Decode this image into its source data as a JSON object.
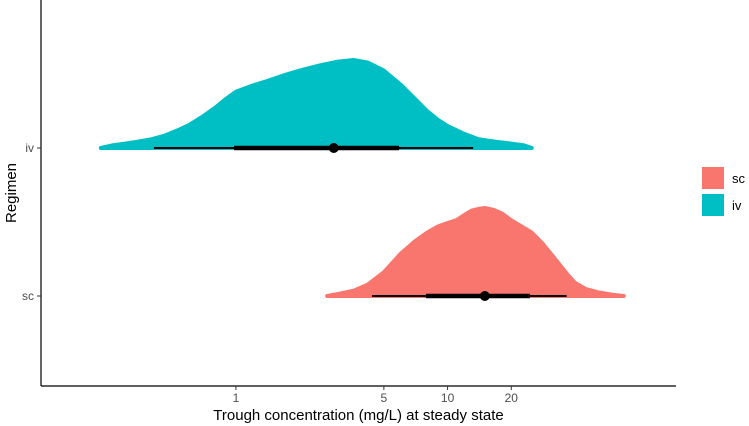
{
  "chart_data": {
    "type": "halfeye",
    "title": "",
    "xlabel": "Trough concentration (mg/L) at steady state",
    "ylabel": "Regimen",
    "x_scale": "log10",
    "xlim": [
      0.12,
      120
    ],
    "x_ticks": [
      {
        "value": 1,
        "label": "1"
      },
      {
        "value": 5,
        "label": "5"
      },
      {
        "value": 10,
        "label": "10"
      },
      {
        "value": 20,
        "label": "20"
      }
    ],
    "categories": [
      "iv",
      "sc"
    ],
    "grid": false,
    "legend": {
      "position": "right",
      "entries": [
        "sc",
        "iv"
      ]
    },
    "series": [
      {
        "name": "iv",
        "color": "#00BFC4",
        "median": 2.9,
        "interval_66": [
          0.98,
          5.9
        ],
        "interval_95": [
          0.41,
          13.2
        ],
        "density": [
          [
            0.23,
            0.0
          ],
          [
            0.26,
            0.03
          ],
          [
            0.3,
            0.05
          ],
          [
            0.34,
            0.07
          ],
          [
            0.4,
            0.1
          ],
          [
            0.46,
            0.14
          ],
          [
            0.53,
            0.2
          ],
          [
            0.6,
            0.26
          ],
          [
            0.7,
            0.36
          ],
          [
            0.8,
            0.46
          ],
          [
            0.9,
            0.56
          ],
          [
            1.0,
            0.64
          ],
          [
            1.2,
            0.71
          ],
          [
            1.4,
            0.76
          ],
          [
            1.7,
            0.83
          ],
          [
            2.0,
            0.88
          ],
          [
            2.5,
            0.94
          ],
          [
            3.0,
            0.98
          ],
          [
            3.6,
            1.0
          ],
          [
            4.2,
            0.97
          ],
          [
            5.0,
            0.88
          ],
          [
            6.0,
            0.72
          ],
          [
            7.0,
            0.56
          ],
          [
            8.0,
            0.42
          ],
          [
            9.0,
            0.32
          ],
          [
            10.0,
            0.25
          ],
          [
            12.0,
            0.16
          ],
          [
            14.0,
            0.1
          ],
          [
            17.0,
            0.07
          ],
          [
            20.0,
            0.05
          ],
          [
            23.0,
            0.03
          ],
          [
            25.0,
            0.0
          ]
        ]
      },
      {
        "name": "sc",
        "color": "#F8766D",
        "median": 15,
        "interval_66": [
          7.9,
          24.5
        ],
        "interval_95": [
          4.4,
          36.5
        ],
        "density": [
          [
            2.7,
            0.0
          ],
          [
            3.0,
            0.02
          ],
          [
            3.6,
            0.06
          ],
          [
            4.2,
            0.13
          ],
          [
            5.0,
            0.27
          ],
          [
            5.5,
            0.38
          ],
          [
            6.0,
            0.48
          ],
          [
            7.0,
            0.62
          ],
          [
            8.0,
            0.72
          ],
          [
            9.0,
            0.79
          ],
          [
            10.0,
            0.83
          ],
          [
            11.0,
            0.86
          ],
          [
            12.0,
            0.92
          ],
          [
            13.0,
            0.97
          ],
          [
            14.0,
            0.99
          ],
          [
            15.0,
            1.0
          ],
          [
            16.5,
            0.98
          ],
          [
            18.0,
            0.94
          ],
          [
            20.0,
            0.86
          ],
          [
            22.0,
            0.8
          ],
          [
            25.0,
            0.72
          ],
          [
            28.0,
            0.6
          ],
          [
            31.0,
            0.47
          ],
          [
            34.0,
            0.35
          ],
          [
            37.0,
            0.24
          ],
          [
            40.0,
            0.15
          ],
          [
            45.0,
            0.08
          ],
          [
            52.0,
            0.04
          ],
          [
            60.0,
            0.015
          ],
          [
            68.0,
            0.0
          ]
        ]
      }
    ]
  }
}
